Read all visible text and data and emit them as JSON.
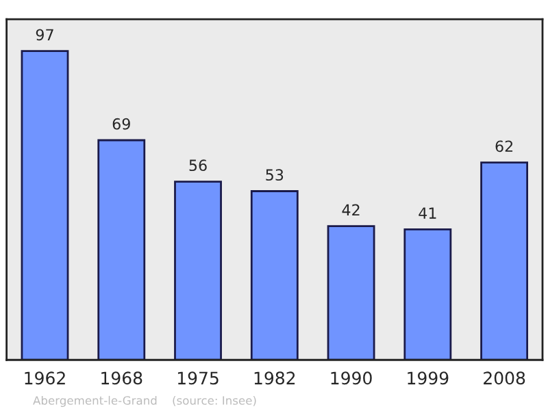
{
  "chart_data": {
    "type": "bar",
    "categories": [
      "1962",
      "1968",
      "1975",
      "1982",
      "1990",
      "1999",
      "2008"
    ],
    "values": [
      97,
      69,
      56,
      53,
      42,
      41,
      62
    ],
    "color": "#7094ff",
    "ylim": [
      0,
      107
    ],
    "tick_labels": "x",
    "data_labels": true,
    "grid": false,
    "annotations": [
      "Abergement-le-Grand    (source: Insee)"
    ]
  }
}
